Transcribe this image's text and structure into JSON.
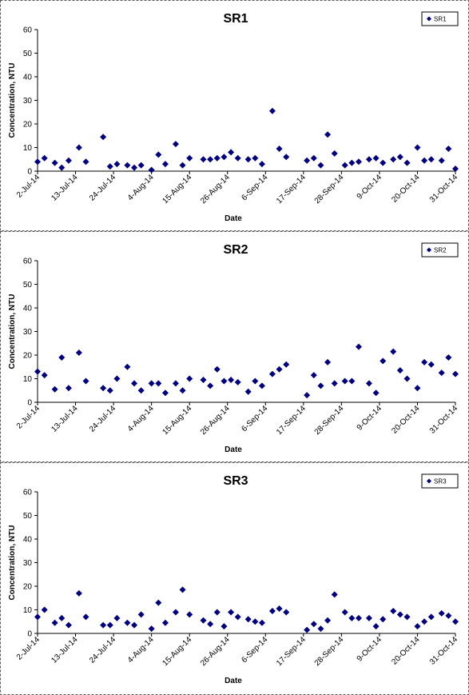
{
  "chart_data": [
    {
      "type": "scatter",
      "title": "SR1",
      "x_label": "Date",
      "y_label": "Concentration, NTU",
      "x": [
        "2014-07-02",
        "2014-07-04",
        "2014-07-07",
        "2014-07-09",
        "2014-07-11",
        "2014-07-14",
        "2014-07-16",
        "2014-07-21",
        "2014-07-23",
        "2014-07-25",
        "2014-07-28",
        "2014-07-30",
        "2014-08-01",
        "2014-08-04",
        "2014-08-06",
        "2014-08-08",
        "2014-08-11",
        "2014-08-13",
        "2014-08-15",
        "2014-08-19",
        "2014-08-21",
        "2014-08-23",
        "2014-08-25",
        "2014-08-27",
        "2014-08-29",
        "2014-09-01",
        "2014-09-03",
        "2014-09-05",
        "2014-09-08",
        "2014-09-10",
        "2014-09-12",
        "2014-09-18",
        "2014-09-20",
        "2014-09-22",
        "2014-09-24",
        "2014-09-26",
        "2014-09-29",
        "2014-10-01",
        "2014-10-03",
        "2014-10-06",
        "2014-10-08",
        "2014-10-10",
        "2014-10-13",
        "2014-10-15",
        "2014-10-17",
        "2014-10-20",
        "2014-10-22",
        "2014-10-24",
        "2014-10-27",
        "2014-10-29",
        "2014-10-31"
      ],
      "series": [
        {
          "name": "SR1",
          "color": "#000080",
          "values": [
            4,
            5.5,
            3.5,
            1.5,
            4.5,
            10,
            4,
            14.5,
            2,
            3,
            2.5,
            1.5,
            2.5,
            0.5,
            7,
            3,
            11.5,
            2.5,
            5.5,
            5,
            5,
            5.5,
            6,
            8,
            5.5,
            5,
            5.5,
            3,
            25.5,
            9.5,
            6,
            4.5,
            5.5,
            2.5,
            15.5,
            7.5,
            2.5,
            3.5,
            4,
            5,
            5.5,
            3.5,
            5,
            6,
            3.5,
            10,
            4.5,
            5,
            4.5,
            9.5,
            1
          ]
        }
      ],
      "xlim": [
        "2014-07-02",
        "2014-10-31"
      ],
      "xticks": [
        {
          "value": "2014-07-02",
          "label": "2-Jul-14"
        },
        {
          "value": "2014-07-13",
          "label": "13-Jul-14"
        },
        {
          "value": "2014-07-24",
          "label": "24-Jul-14"
        },
        {
          "value": "2014-08-04",
          "label": "4-Aug-14"
        },
        {
          "value": "2014-08-15",
          "label": "15-Aug-14"
        },
        {
          "value": "2014-08-26",
          "label": "26-Aug-14"
        },
        {
          "value": "2014-09-06",
          "label": "6-Sep-14"
        },
        {
          "value": "2014-09-17",
          "label": "17-Sep-14"
        },
        {
          "value": "2014-09-28",
          "label": "28-Sep-14"
        },
        {
          "value": "2014-10-09",
          "label": "9-Oct-14"
        },
        {
          "value": "2014-10-20",
          "label": "20-Oct-14"
        },
        {
          "value": "2014-10-31",
          "label": "31-Oct-14"
        }
      ],
      "ylim": [
        0,
        60
      ],
      "yticks": [
        0,
        10,
        20,
        30,
        40,
        50,
        60
      ],
      "legend": "top-right"
    },
    {
      "type": "scatter",
      "title": "SR2",
      "x_label": "Date",
      "y_label": "Concentration, NTU",
      "x": [
        "2014-07-02",
        "2014-07-04",
        "2014-07-07",
        "2014-07-09",
        "2014-07-11",
        "2014-07-14",
        "2014-07-16",
        "2014-07-21",
        "2014-07-23",
        "2014-07-25",
        "2014-07-28",
        "2014-07-30",
        "2014-08-01",
        "2014-08-04",
        "2014-08-06",
        "2014-08-08",
        "2014-08-11",
        "2014-08-13",
        "2014-08-15",
        "2014-08-19",
        "2014-08-21",
        "2014-08-23",
        "2014-08-25",
        "2014-08-27",
        "2014-08-29",
        "2014-09-01",
        "2014-09-03",
        "2014-09-05",
        "2014-09-08",
        "2014-09-10",
        "2014-09-12",
        "2014-09-18",
        "2014-09-20",
        "2014-09-22",
        "2014-09-24",
        "2014-09-26",
        "2014-09-29",
        "2014-10-01",
        "2014-10-03",
        "2014-10-06",
        "2014-10-08",
        "2014-10-10",
        "2014-10-13",
        "2014-10-15",
        "2014-10-17",
        "2014-10-20",
        "2014-10-22",
        "2014-10-24",
        "2014-10-27",
        "2014-10-29",
        "2014-10-31"
      ],
      "series": [
        {
          "name": "SR2",
          "color": "#000080",
          "values": [
            13,
            11.5,
            5.5,
            19,
            6,
            21,
            9,
            6,
            5,
            10,
            15,
            8,
            5,
            8,
            8,
            4,
            8,
            5,
            10,
            9.5,
            7,
            14,
            9,
            9.5,
            8.5,
            4.5,
            9,
            7,
            12,
            14,
            16,
            3,
            11.5,
            7,
            17,
            8,
            9,
            9,
            23.5,
            8,
            4,
            17.5,
            21.5,
            13.5,
            10,
            6,
            17,
            16,
            12.5,
            19,
            12
          ]
        }
      ],
      "xlim": [
        "2014-07-02",
        "2014-10-31"
      ],
      "xticks": [
        {
          "value": "2014-07-02",
          "label": "2-Jul-14"
        },
        {
          "value": "2014-07-13",
          "label": "13-Jul-14"
        },
        {
          "value": "2014-07-24",
          "label": "24-Jul-14"
        },
        {
          "value": "2014-08-04",
          "label": "4-Aug-14"
        },
        {
          "value": "2014-08-15",
          "label": "15-Aug-14"
        },
        {
          "value": "2014-08-26",
          "label": "26-Aug-14"
        },
        {
          "value": "2014-09-06",
          "label": "6-Sep-14"
        },
        {
          "value": "2014-09-17",
          "label": "17-Sep-14"
        },
        {
          "value": "2014-09-28",
          "label": "28-Sep-14"
        },
        {
          "value": "2014-10-09",
          "label": "9-Oct-14"
        },
        {
          "value": "2014-10-20",
          "label": "20-Oct-14"
        },
        {
          "value": "2014-10-31",
          "label": "31-Oct-14"
        }
      ],
      "ylim": [
        0,
        60
      ],
      "yticks": [
        0,
        10,
        20,
        30,
        40,
        50,
        60
      ],
      "legend": "top-right"
    },
    {
      "type": "scatter",
      "title": "SR3",
      "x_label": "Date",
      "y_label": "Concentration, NTU",
      "x": [
        "2014-07-02",
        "2014-07-04",
        "2014-07-07",
        "2014-07-09",
        "2014-07-11",
        "2014-07-14",
        "2014-07-16",
        "2014-07-21",
        "2014-07-23",
        "2014-07-25",
        "2014-07-28",
        "2014-07-30",
        "2014-08-01",
        "2014-08-04",
        "2014-08-06",
        "2014-08-08",
        "2014-08-11",
        "2014-08-13",
        "2014-08-15",
        "2014-08-19",
        "2014-08-21",
        "2014-08-23",
        "2014-08-25",
        "2014-08-27",
        "2014-08-29",
        "2014-09-01",
        "2014-09-03",
        "2014-09-05",
        "2014-09-08",
        "2014-09-10",
        "2014-09-12",
        "2014-09-18",
        "2014-09-20",
        "2014-09-22",
        "2014-09-24",
        "2014-09-26",
        "2014-09-29",
        "2014-10-01",
        "2014-10-03",
        "2014-10-06",
        "2014-10-08",
        "2014-10-10",
        "2014-10-13",
        "2014-10-15",
        "2014-10-17",
        "2014-10-20",
        "2014-10-22",
        "2014-10-24",
        "2014-10-27",
        "2014-10-29",
        "2014-10-31"
      ],
      "series": [
        {
          "name": "SR3",
          "color": "#000080",
          "values": [
            7,
            10,
            4.5,
            6.5,
            3.5,
            17,
            7,
            3.5,
            3.5,
            6.5,
            4.5,
            3.5,
            8,
            2,
            13,
            4.5,
            9,
            18.5,
            8,
            5.5,
            4,
            9,
            3,
            9,
            7,
            6,
            5,
            4.5,
            9.5,
            10.5,
            9,
            1.5,
            4,
            2,
            5.5,
            16.5,
            9,
            6.5,
            6.5,
            6.5,
            3,
            6,
            9.5,
            8,
            7,
            3,
            5,
            7,
            8.5,
            7.5,
            5
          ]
        }
      ],
      "xlim": [
        "2014-07-02",
        "2014-10-31"
      ],
      "xticks": [
        {
          "value": "2014-07-02",
          "label": "2-Jul-14"
        },
        {
          "value": "2014-07-13",
          "label": "13-Jul-14"
        },
        {
          "value": "2014-07-24",
          "label": "24-Jul-14"
        },
        {
          "value": "2014-08-04",
          "label": "4-Aug-14"
        },
        {
          "value": "2014-08-15",
          "label": "15-Aug-14"
        },
        {
          "value": "2014-08-26",
          "label": "26-Aug-14"
        },
        {
          "value": "2014-09-06",
          "label": "6-Sep-14"
        },
        {
          "value": "2014-09-17",
          "label": "17-Sep-14"
        },
        {
          "value": "2014-09-28",
          "label": "28-Sep-14"
        },
        {
          "value": "2014-10-09",
          "label": "9-Oct-14"
        },
        {
          "value": "2014-10-20",
          "label": "20-Oct-14"
        },
        {
          "value": "2014-10-31",
          "label": "31-Oct-14"
        }
      ],
      "ylim": [
        0,
        60
      ],
      "yticks": [
        0,
        10,
        20,
        30,
        40,
        50,
        60
      ],
      "legend": "top-right"
    }
  ]
}
